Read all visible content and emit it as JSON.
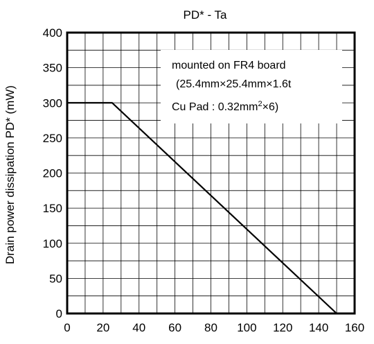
{
  "chart_data": {
    "type": "line",
    "title": "PD* - Ta",
    "ylabel": "Drain power dissipation  PD* (mW)",
    "xlabel": "",
    "xlim": [
      0,
      160
    ],
    "ylim": [
      0,
      400
    ],
    "xticks": [
      0,
      20,
      40,
      60,
      80,
      100,
      120,
      140,
      160
    ],
    "yticks": [
      0,
      50,
      100,
      150,
      200,
      250,
      300,
      350,
      400
    ],
    "grid": true,
    "series": [
      {
        "x": [
          0,
          25,
          150
        ],
        "y": [
          300,
          300,
          0
        ]
      }
    ],
    "annotation": {
      "line1": "mounted on FR4 board",
      "line2": "(25.4mm×25.4mm×1.6t",
      "line3_prefix": "Cu Pad : 0.32mm",
      "line3_sup": "2",
      "line3_suffix": "×6)"
    }
  }
}
